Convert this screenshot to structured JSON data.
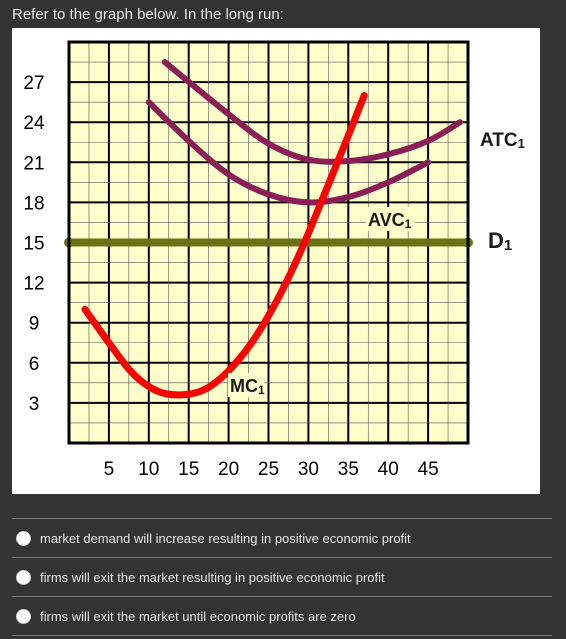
{
  "question": {
    "prompt": "Refer to the graph below. In the long run:"
  },
  "chart_data": {
    "type": "line",
    "x_ticks": [
      "5",
      "10",
      "15",
      "20",
      "25",
      "30",
      "35",
      "40",
      "45"
    ],
    "y_ticks": [
      "27",
      "24",
      "21",
      "18",
      "15",
      "12",
      "9",
      "6",
      "3"
    ],
    "xlim": [
      0,
      50
    ],
    "ylim": [
      0,
      30
    ],
    "grid": true,
    "background_color": "#ffffcc",
    "grid_color": "#000000",
    "series": [
      {
        "name": "ATC1",
        "color": "#8b1e57",
        "points": [
          [
            12,
            28.5
          ],
          [
            20,
            24.6
          ],
          [
            25,
            22.4
          ],
          [
            30,
            21.2
          ],
          [
            35,
            21.1
          ],
          [
            40,
            21.6
          ],
          [
            45,
            22.6
          ],
          [
            49,
            24
          ]
        ]
      },
      {
        "name": "AVC1",
        "color": "#8b1e57",
        "points": [
          [
            10,
            25.5
          ],
          [
            15,
            22.6
          ],
          [
            20,
            20.1
          ],
          [
            25,
            18.6
          ],
          [
            30,
            18
          ],
          [
            35,
            18.4
          ],
          [
            40,
            19.5
          ],
          [
            45,
            21
          ]
        ]
      },
      {
        "name": "D1",
        "color": "#6b7216",
        "points": [
          [
            0,
            15
          ],
          [
            50,
            15
          ]
        ]
      },
      {
        "name": "MC1",
        "color": "#ff0000",
        "points": [
          [
            2,
            10
          ],
          [
            5,
            7.5
          ],
          [
            8,
            5.2
          ],
          [
            11,
            3.9
          ],
          [
            14,
            3.6
          ],
          [
            17,
            4
          ],
          [
            20,
            5.4
          ],
          [
            23,
            7.6
          ],
          [
            26,
            10.6
          ],
          [
            29,
            14.3
          ],
          [
            32,
            18.6
          ],
          [
            35,
            23
          ],
          [
            37,
            26
          ]
        ]
      }
    ],
    "labels": [
      {
        "series": "ATC1",
        "text": "ATC1"
      },
      {
        "series": "AVC1",
        "text": "AVC1"
      },
      {
        "series": "D1",
        "text": "D1"
      },
      {
        "series": "MC1",
        "text": "MC1"
      }
    ]
  },
  "options": [
    {
      "label": "market demand will increase resulting in positive economic profit"
    },
    {
      "label": "firms will exit the market resulting in positive economic profit"
    },
    {
      "label": "firms will exit the market until economic profits are zero"
    }
  ]
}
